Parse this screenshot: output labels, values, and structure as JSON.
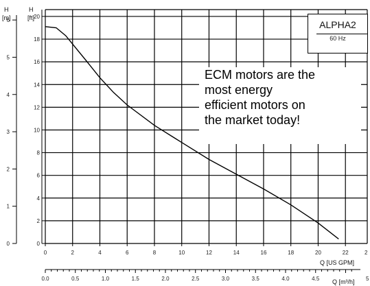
{
  "chart_data": {
    "type": "line",
    "title": "",
    "model": "ALPHA2",
    "frequency": "60 Hz",
    "annotation": [
      "ECM motors are the",
      "most energy",
      "efficient motors on",
      "the market today!"
    ],
    "y_left_axis": {
      "label_top": "H",
      "label_unit": "[m]",
      "ticks": [
        0,
        1,
        2,
        3,
        4,
        5,
        6
      ],
      "range": [
        0,
        6.3
      ]
    },
    "y_right_axis": {
      "label_top": "H",
      "label_unit": "[ft]",
      "ticks": [
        0,
        2,
        4,
        6,
        8,
        10,
        12,
        14,
        16,
        18,
        20
      ],
      "range": [
        0,
        20.6
      ]
    },
    "x_axis_primary": {
      "label": "Q [US GPM]",
      "ticks": [
        "0",
        "2",
        "4",
        "6",
        "8",
        "10",
        "12",
        "14",
        "16",
        "18",
        "20",
        "22"
      ],
      "extra_tick": "2",
      "range": [
        0,
        23.6
      ]
    },
    "x_axis_secondary": {
      "label": "Q [m³/h]",
      "ticks": [
        "0.0",
        "0.5",
        "1.0",
        "1.5",
        "2.0",
        "2.5",
        "3.0",
        "3.5",
        "4.0",
        "4.5"
      ],
      "extra_tick": "5"
    },
    "grid": true,
    "series": [
      {
        "x": [
          0,
          0.8,
          1.5,
          3,
          4,
          5,
          6,
          8,
          10,
          12,
          14,
          16,
          18,
          20,
          21.5
        ],
        "y": [
          19.1,
          19.0,
          18.3,
          16.1,
          14.6,
          13.3,
          12.2,
          10.4,
          8.9,
          7.4,
          6.1,
          4.8,
          3.4,
          1.8,
          0.4
        ]
      }
    ]
  }
}
